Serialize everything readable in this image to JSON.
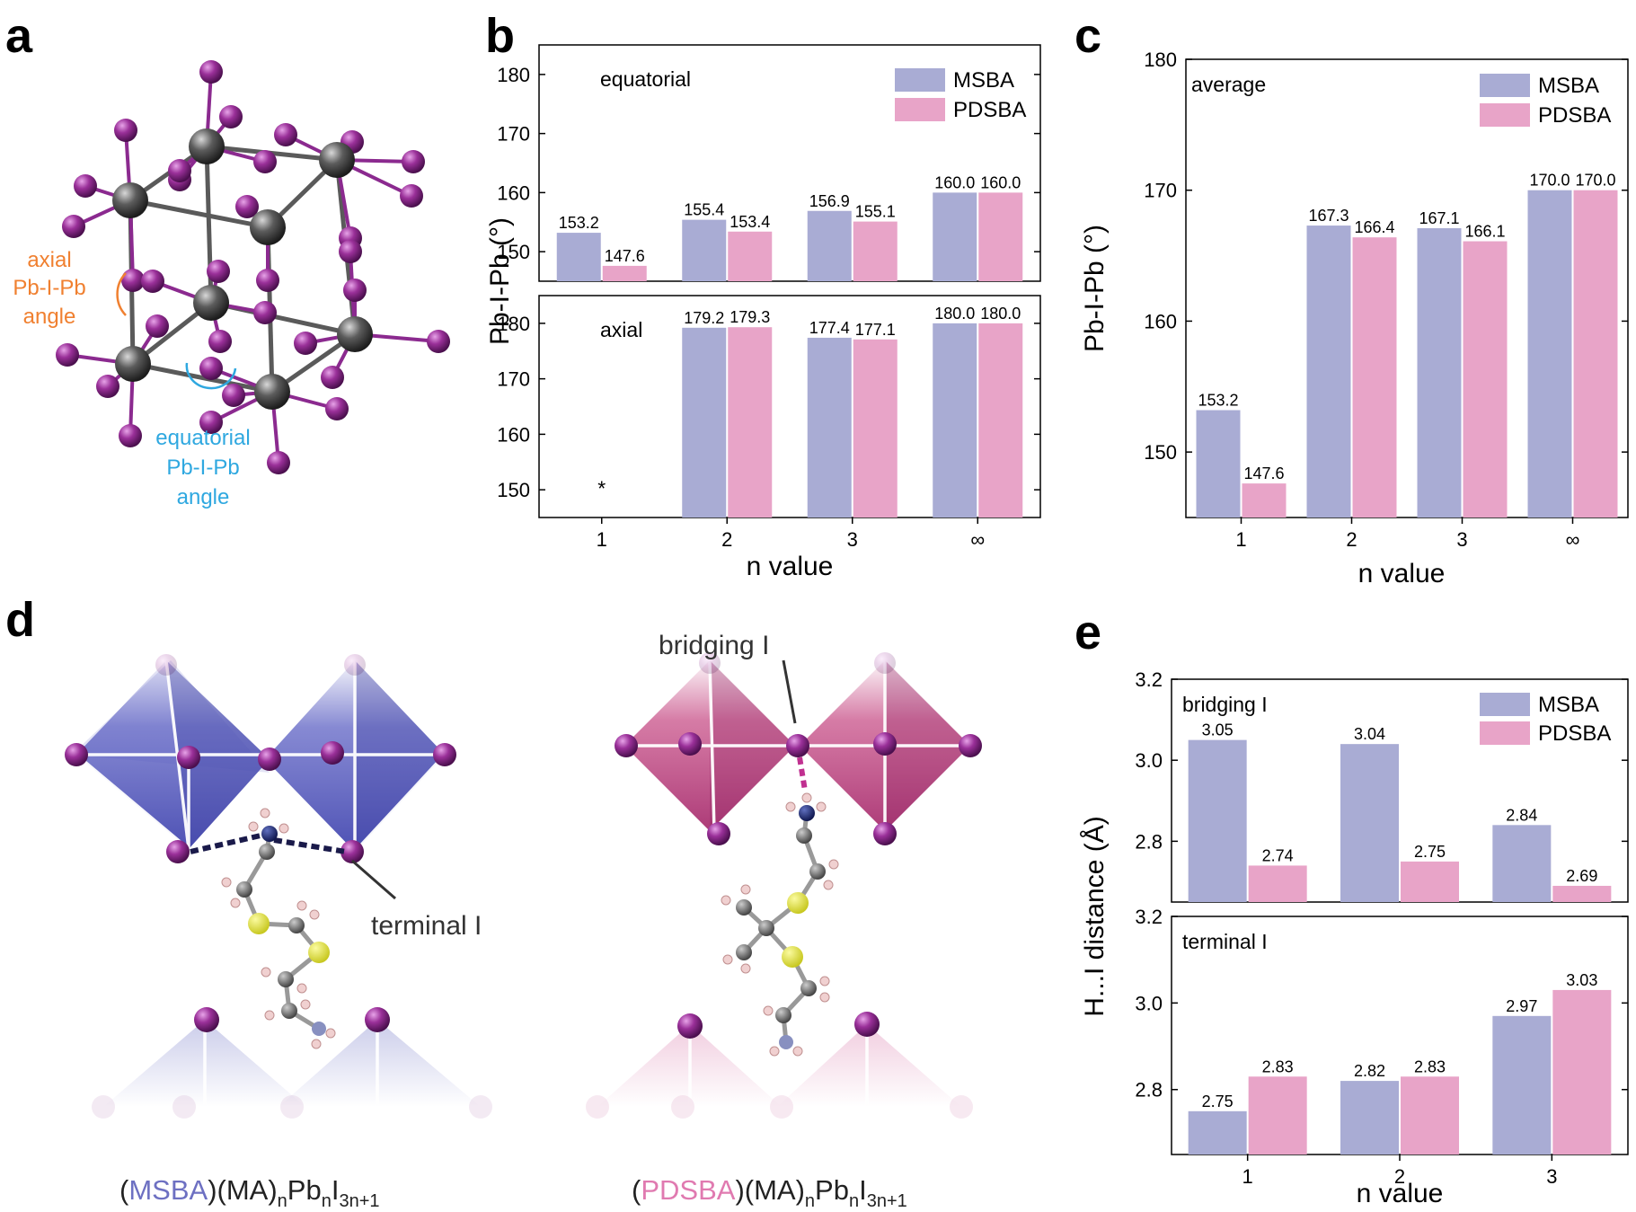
{
  "colors": {
    "msba": "#a9acd4",
    "pdsba": "#e8a4c8",
    "orange": "#f08030",
    "blue": "#2fa8e0",
    "iodine": "#8b2a8f",
    "lead": "#555555"
  },
  "panels": {
    "a": "a",
    "b": "b",
    "c": "c",
    "d": "d",
    "e": "e"
  },
  "structure_a": {
    "axial_label": [
      "axial",
      "Pb-I-Pb",
      "angle"
    ],
    "equatorial_label": [
      "equatorial",
      "Pb-I-Pb",
      "angle"
    ]
  },
  "structure_d": {
    "terminal_label": "terminal I",
    "bridging_label": "bridging I",
    "left_formula": {
      "open": "(",
      "cation": "MSBA",
      "rest": ")(MA)",
      "sub1": "n",
      "pb": "Pb",
      "sub2": "n",
      "i": "I",
      "sub3": "3n+1"
    },
    "right_formula": {
      "open": "(",
      "cation": "PDSBA",
      "rest": ")(MA)",
      "sub1": "n",
      "pb": "Pb",
      "sub2": "n",
      "i": "I",
      "sub3": "3n+1"
    }
  },
  "chart_data": [
    {
      "id": "b",
      "type": "bar",
      "ylabel": "Pb-I-Pb (°)",
      "xlabel": "n value",
      "categories": [
        "1",
        "2",
        "3",
        "∞"
      ],
      "legend": [
        "MSBA",
        "PDSBA"
      ],
      "legend_position": "top-right",
      "subplots": [
        {
          "title": "equatorial",
          "ylim": [
            145,
            185
          ],
          "yticks": [
            150,
            160,
            170,
            180
          ],
          "series": [
            {
              "name": "MSBA",
              "values": [
                153.2,
                155.4,
                156.9,
                160.0
              ],
              "labels": [
                "153.2",
                "155.4",
                "156.9",
                "160.0"
              ]
            },
            {
              "name": "PDSBA",
              "values": [
                147.6,
                153.4,
                155.1,
                160.0
              ],
              "labels": [
                "147.6",
                "153.4",
                "155.1",
                "160.0"
              ]
            }
          ]
        },
        {
          "title": "axial",
          "ylim": [
            145,
            185
          ],
          "yticks": [
            150,
            160,
            170,
            180
          ],
          "annotation": {
            "category": "1",
            "text": "*"
          },
          "series": [
            {
              "name": "MSBA",
              "values": [
                null,
                179.2,
                177.4,
                180.0
              ],
              "labels": [
                "",
                "179.2",
                "177.4",
                "180.0"
              ]
            },
            {
              "name": "PDSBA",
              "values": [
                null,
                179.3,
                177.1,
                180.0
              ],
              "labels": [
                "",
                "179.3",
                "177.1",
                "180.0"
              ]
            }
          ]
        }
      ]
    },
    {
      "id": "c",
      "type": "bar",
      "title": "average",
      "ylabel": "Pb-I-Pb (°)",
      "xlabel": "n value",
      "categories": [
        "1",
        "2",
        "3",
        "∞"
      ],
      "ylim": [
        145,
        180
      ],
      "yticks": [
        150,
        160,
        170,
        180
      ],
      "legend": [
        "MSBA",
        "PDSBA"
      ],
      "legend_position": "top-right",
      "series": [
        {
          "name": "MSBA",
          "values": [
            153.2,
            167.3,
            167.1,
            170.0
          ],
          "labels": [
            "153.2",
            "167.3",
            "167.1",
            "170.0"
          ]
        },
        {
          "name": "PDSBA",
          "values": [
            147.6,
            166.4,
            166.1,
            170.0
          ],
          "labels": [
            "147.6",
            "166.4",
            "166.1",
            "170.0"
          ]
        }
      ]
    },
    {
      "id": "e",
      "type": "bar",
      "ylabel": "H...I distance (Å)",
      "xlabel": "n value",
      "categories": [
        "1",
        "2",
        "3"
      ],
      "legend": [
        "MSBA",
        "PDSBA"
      ],
      "legend_position": "top-right",
      "subplots": [
        {
          "title": "bridging I",
          "ylim": [
            2.65,
            3.2
          ],
          "yticks": [
            2.8,
            3.0,
            3.2
          ],
          "ytick_labels": [
            "2.8",
            "3.0",
            "3.2"
          ],
          "series": [
            {
              "name": "MSBA",
              "values": [
                3.05,
                3.04,
                2.84
              ],
              "labels": [
                "3.05",
                "3.04",
                "2.84"
              ]
            },
            {
              "name": "PDSBA",
              "values": [
                2.74,
                2.75,
                2.69
              ],
              "labels": [
                "2.74",
                "2.75",
                "2.69"
              ]
            }
          ]
        },
        {
          "title": "terminal I",
          "ylim": [
            2.65,
            3.2
          ],
          "yticks": [
            2.8,
            3.0,
            3.2
          ],
          "ytick_labels": [
            "2.8",
            "3.0",
            "3.2"
          ],
          "series": [
            {
              "name": "MSBA",
              "values": [
                2.75,
                2.82,
                2.97
              ],
              "labels": [
                "2.75",
                "2.82",
                "2.97"
              ]
            },
            {
              "name": "PDSBA",
              "values": [
                2.83,
                2.83,
                3.03
              ],
              "labels": [
                "2.83",
                "2.83",
                "3.03"
              ]
            }
          ]
        }
      ]
    }
  ]
}
